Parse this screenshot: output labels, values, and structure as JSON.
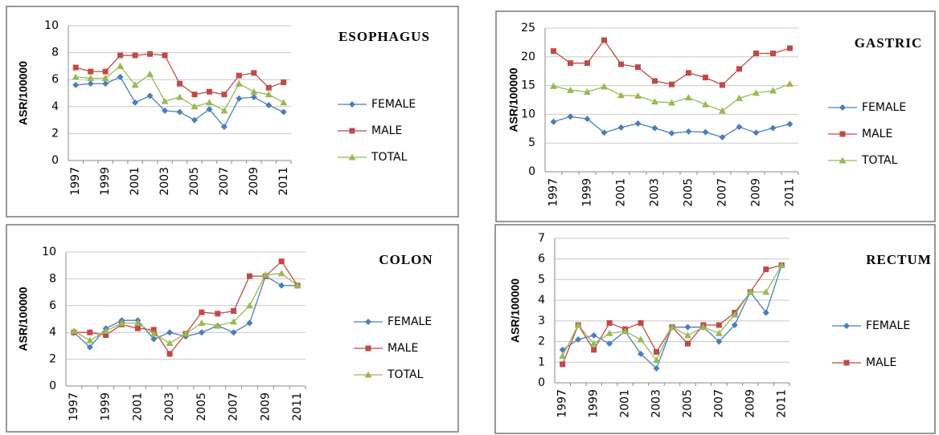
{
  "chart_data": [
    {
      "type": "line",
      "title": "ESOPHAGUS",
      "y_label": "ASR/100000",
      "categories": [
        "1997",
        null,
        "1999",
        null,
        "2001",
        null,
        "2003",
        null,
        "2005",
        null,
        "2007",
        null,
        "2009",
        null,
        "2011"
      ],
      "ylim": [
        0,
        10
      ],
      "yticks": [
        0,
        2,
        4,
        6,
        8,
        10
      ],
      "grid": true,
      "series": [
        {
          "name": "FEMALE",
          "color": "#4a7ebb",
          "marker": "diamond",
          "values": [
            5.6,
            5.7,
            5.7,
            6.2,
            4.3,
            4.8,
            3.7,
            3.6,
            3.0,
            3.8,
            2.5,
            4.6,
            4.7,
            4.1,
            3.6
          ]
        },
        {
          "name": "MALE",
          "color": "#be4b48",
          "marker": "square",
          "values": [
            6.9,
            6.6,
            6.6,
            7.8,
            7.8,
            7.9,
            7.8,
            5.7,
            4.9,
            5.1,
            4.9,
            6.3,
            6.5,
            5.4,
            5.8
          ]
        },
        {
          "name": "TOTAL",
          "color": "#98b954",
          "marker": "triangle",
          "values": [
            6.2,
            6.1,
            6.1,
            7.0,
            5.6,
            6.4,
            4.4,
            4.7,
            4.0,
            4.3,
            3.7,
            5.7,
            5.1,
            4.9,
            4.3
          ]
        }
      ]
    },
    {
      "type": "line",
      "title": "GASTRIC",
      "y_label": "ASR/100000",
      "categories": [
        "1997",
        null,
        "1999",
        null,
        "2001",
        null,
        "2003",
        null,
        "2005",
        null,
        "2007",
        null,
        "2009",
        null,
        "2011"
      ],
      "ylim": [
        0,
        25
      ],
      "yticks": [
        0,
        5,
        10,
        15,
        20,
        25
      ],
      "grid": true,
      "series": [
        {
          "name": "FEMALE",
          "color": "#4a7ebb",
          "marker": "diamond",
          "values": [
            8.7,
            9.6,
            9.2,
            6.8,
            7.7,
            8.4,
            7.6,
            6.7,
            7.0,
            6.9,
            6.0,
            7.8,
            6.8,
            7.6,
            8.3
          ]
        },
        {
          "name": "MALE",
          "color": "#be4b48",
          "marker": "square",
          "values": [
            21.0,
            18.9,
            18.9,
            22.9,
            18.7,
            18.2,
            15.8,
            15.2,
            17.2,
            16.4,
            15.1,
            17.9,
            20.6,
            20.6,
            21.5
          ]
        },
        {
          "name": "TOTAL",
          "color": "#98b954",
          "marker": "triangle",
          "values": [
            14.9,
            14.2,
            13.9,
            14.8,
            13.3,
            13.2,
            12.2,
            12.0,
            12.9,
            11.7,
            10.6,
            12.8,
            13.7,
            14.1,
            15.3
          ]
        }
      ]
    },
    {
      "type": "line",
      "title": "COLON",
      "y_label": "ASR/100000",
      "categories": [
        "1997",
        null,
        "1999",
        null,
        "2001",
        null,
        "2003",
        null,
        "2005",
        null,
        "2007",
        null,
        "2009",
        null,
        "2011"
      ],
      "ylim": [
        0,
        10
      ],
      "yticks": [
        0,
        2,
        4,
        6,
        8,
        10
      ],
      "grid": true,
      "series": [
        {
          "name": "FEMALE",
          "color": "#4a7ebb",
          "marker": "diamond",
          "values": [
            4.0,
            2.9,
            4.3,
            4.9,
            4.9,
            3.5,
            4.0,
            3.7,
            4.0,
            4.5,
            4.0,
            4.7,
            8.2,
            7.5,
            7.5
          ]
        },
        {
          "name": "MALE",
          "color": "#be4b48",
          "marker": "square",
          "values": [
            4.0,
            4.0,
            3.8,
            4.6,
            4.3,
            4.2,
            2.4,
            3.9,
            5.5,
            5.4,
            5.6,
            8.2,
            8.2,
            9.3,
            7.5
          ]
        },
        {
          "name": "TOTAL",
          "color": "#98b954",
          "marker": "triangle",
          "values": [
            4.1,
            3.4,
            4.1,
            4.7,
            4.7,
            3.9,
            3.2,
            3.9,
            4.7,
            4.5,
            4.8,
            6.0,
            8.3,
            8.4,
            7.5
          ]
        }
      ]
    },
    {
      "type": "line",
      "title": "RECTUM",
      "y_label": "ASR/100000",
      "categories": [
        "1997",
        null,
        "1999",
        null,
        "2001",
        null,
        "2003",
        null,
        "2005",
        null,
        "2007",
        null,
        "2009",
        null,
        "2011"
      ],
      "ylim": [
        0,
        7
      ],
      "yticks": [
        0,
        1,
        2,
        3,
        4,
        5,
        6,
        7
      ],
      "grid": true,
      "series": [
        {
          "name": "FEMALE",
          "color": "#4a7ebb",
          "marker": "diamond",
          "values": [
            1.6,
            2.1,
            2.3,
            1.9,
            2.5,
            1.4,
            0.7,
            2.7,
            2.7,
            2.7,
            2.0,
            2.8,
            4.4,
            3.4,
            5.7
          ]
        },
        {
          "name": "MALE",
          "color": "#be4b48",
          "marker": "square",
          "values": [
            0.9,
            2.8,
            1.6,
            2.9,
            2.6,
            2.9,
            1.5,
            2.7,
            1.9,
            2.8,
            2.8,
            3.4,
            4.4,
            5.5,
            5.7
          ]
        },
        {
          "color": "#98b954",
          "marker": "triangle",
          "values": [
            1.3,
            2.8,
            1.9,
            2.4,
            2.5,
            2.1,
            1.1,
            2.7,
            2.3,
            2.7,
            2.4,
            3.3,
            4.4,
            4.4,
            5.7
          ]
        }
      ]
    }
  ]
}
